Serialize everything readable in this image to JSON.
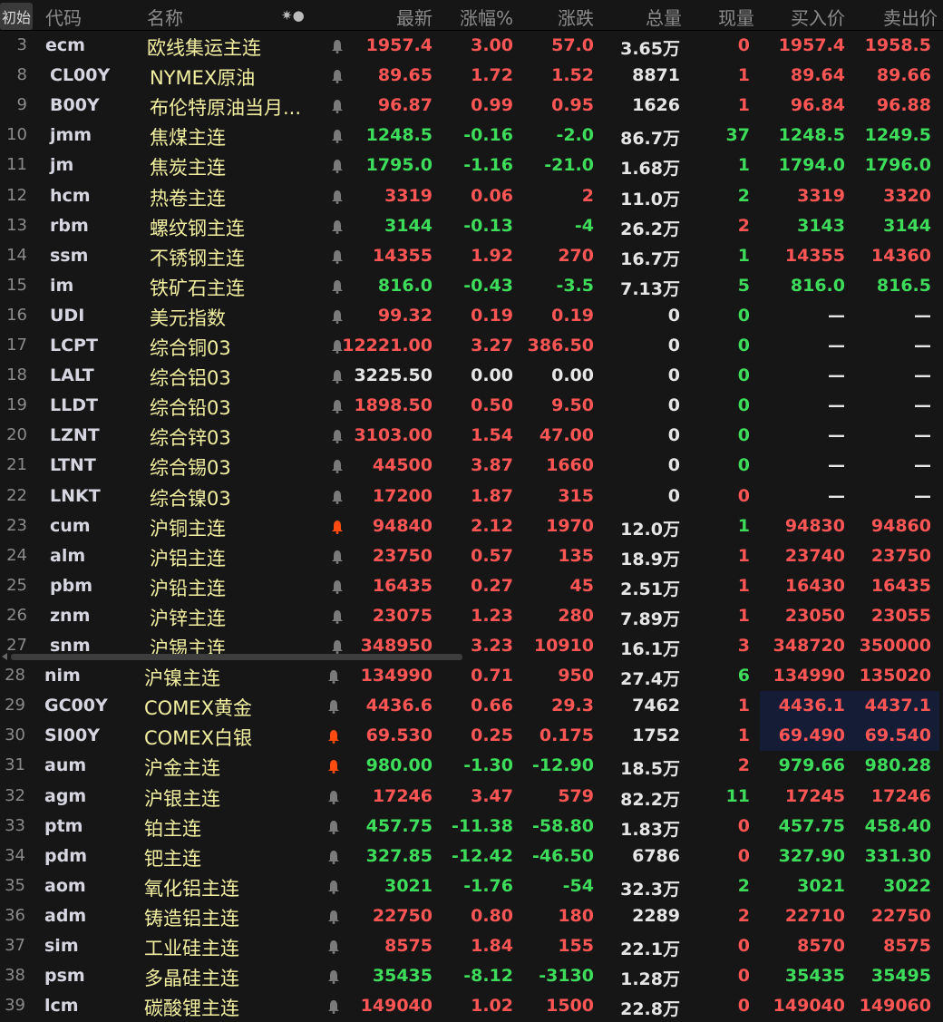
{
  "header": {
    "init": "初始",
    "code": "代码",
    "name": "名称",
    "icons": "✷●",
    "last": "最新",
    "pct": "涨幅%",
    "chg": "涨跌",
    "vol": "总量",
    "cur": "现量",
    "bid": "买入价",
    "ask": "卖出价"
  },
  "colors": {
    "up": "#ff5555",
    "down": "#3ddc5a",
    "flat": "#e6e6e6",
    "name": "#f2f0a0",
    "bell_gray": "#7a7a7a",
    "bell_orange": "#ff4a10",
    "highlight": "#141c36"
  },
  "rows": [
    {
      "n": "3",
      "code": "ecm",
      "name": "欧线集运主连",
      "bell": "gray",
      "last": "1957.4",
      "pct": "3.00",
      "chg": "57.0",
      "vol": "3.65万",
      "cur": "0",
      "bid": "1957.4",
      "ask": "1958.5",
      "c": "r",
      "cc": "r"
    },
    {
      "n": "8",
      "code": "CL00Y",
      "name": "NYMEX原油",
      "bell": "gray",
      "last": "89.65",
      "pct": "1.72",
      "chg": "1.52",
      "vol": "8871",
      "cur": "1",
      "bid": "89.64",
      "ask": "89.66",
      "c": "r",
      "cc": "r"
    },
    {
      "n": "9",
      "code": "B00Y",
      "name": "布伦特原油当月...",
      "bell": "gray",
      "last": "96.87",
      "pct": "0.99",
      "chg": "0.95",
      "vol": "1626",
      "cur": "1",
      "bid": "96.84",
      "ask": "96.88",
      "c": "r",
      "cc": "r"
    },
    {
      "n": "10",
      "code": "jmm",
      "name": "焦煤主连",
      "bell": "gray",
      "last": "1248.5",
      "pct": "-0.16",
      "chg": "-2.0",
      "vol": "86.7万",
      "cur": "37",
      "bid": "1248.5",
      "ask": "1249.5",
      "c": "g",
      "cc": "g"
    },
    {
      "n": "11",
      "code": "jm",
      "name": "焦炭主连",
      "bell": "gray",
      "last": "1795.0",
      "pct": "-1.16",
      "chg": "-21.0",
      "vol": "1.68万",
      "cur": "1",
      "bid": "1794.0",
      "ask": "1796.0",
      "c": "g",
      "cc": "g"
    },
    {
      "n": "12",
      "code": "hcm",
      "name": "热卷主连",
      "bell": "gray",
      "last": "3319",
      "pct": "0.06",
      "chg": "2",
      "vol": "11.0万",
      "cur": "2",
      "bid": "3319",
      "ask": "3320",
      "c": "r",
      "cc": "g"
    },
    {
      "n": "13",
      "code": "rbm",
      "name": "螺纹钢主连",
      "bell": "gray",
      "last": "3144",
      "pct": "-0.13",
      "chg": "-4",
      "vol": "26.2万",
      "cur": "2",
      "bid": "3143",
      "ask": "3144",
      "c": "g",
      "cc": "r"
    },
    {
      "n": "14",
      "code": "ssm",
      "name": "不锈钢主连",
      "bell": "gray",
      "last": "14355",
      "pct": "1.92",
      "chg": "270",
      "vol": "16.7万",
      "cur": "1",
      "bid": "14355",
      "ask": "14360",
      "c": "r",
      "cc": "g"
    },
    {
      "n": "15",
      "code": "im",
      "name": "铁矿石主连",
      "bell": "gray",
      "last": "816.0",
      "pct": "-0.43",
      "chg": "-3.5",
      "vol": "7.13万",
      "cur": "5",
      "bid": "816.0",
      "ask": "816.5",
      "c": "g",
      "cc": "g"
    },
    {
      "n": "16",
      "code": "UDI",
      "name": "美元指数",
      "bell": "gray",
      "last": "99.32",
      "pct": "0.19",
      "chg": "0.19",
      "vol": "0",
      "cur": "0",
      "bid": "—",
      "ask": "—",
      "c": "r",
      "cc": "g"
    },
    {
      "n": "17",
      "code": "LCPT",
      "name": "综合铜03",
      "bell": "gray",
      "last": "12221.00",
      "pct": "3.27",
      "chg": "386.50",
      "vol": "0",
      "cur": "0",
      "bid": "—",
      "ask": "—",
      "c": "r",
      "cc": "g"
    },
    {
      "n": "18",
      "code": "LALT",
      "name": "综合铝03",
      "bell": "gray",
      "last": "3225.50",
      "pct": "0.00",
      "chg": "0.00",
      "vol": "0",
      "cur": "0",
      "bid": "—",
      "ask": "—",
      "c": "w",
      "cc": "g"
    },
    {
      "n": "19",
      "code": "LLDT",
      "name": "综合铅03",
      "bell": "gray",
      "last": "1898.50",
      "pct": "0.50",
      "chg": "9.50",
      "vol": "0",
      "cur": "0",
      "bid": "—",
      "ask": "—",
      "c": "r",
      "cc": "g"
    },
    {
      "n": "20",
      "code": "LZNT",
      "name": "综合锌03",
      "bell": "gray",
      "last": "3103.00",
      "pct": "1.54",
      "chg": "47.00",
      "vol": "0",
      "cur": "0",
      "bid": "—",
      "ask": "—",
      "c": "r",
      "cc": "g"
    },
    {
      "n": "21",
      "code": "LTNT",
      "name": "综合锡03",
      "bell": "gray",
      "last": "44500",
      "pct": "3.87",
      "chg": "1660",
      "vol": "0",
      "cur": "0",
      "bid": "—",
      "ask": "—",
      "c": "r",
      "cc": "g"
    },
    {
      "n": "22",
      "code": "LNKT",
      "name": "综合镍03",
      "bell": "gray",
      "last": "17200",
      "pct": "1.87",
      "chg": "315",
      "vol": "0",
      "cur": "0",
      "bid": "—",
      "ask": "—",
      "c": "r",
      "cc": "r"
    },
    {
      "n": "23",
      "code": "cum",
      "name": "沪铜主连",
      "bell": "orange",
      "last": "94840",
      "pct": "2.12",
      "chg": "1970",
      "vol": "12.0万",
      "cur": "1",
      "bid": "94830",
      "ask": "94860",
      "c": "r",
      "cc": "g"
    },
    {
      "n": "24",
      "code": "alm",
      "name": "沪铝主连",
      "bell": "gray",
      "last": "23750",
      "pct": "0.57",
      "chg": "135",
      "vol": "18.9万",
      "cur": "1",
      "bid": "23740",
      "ask": "23750",
      "c": "r",
      "cc": "r"
    },
    {
      "n": "25",
      "code": "pbm",
      "name": "沪铅主连",
      "bell": "gray",
      "last": "16435",
      "pct": "0.27",
      "chg": "45",
      "vol": "2.51万",
      "cur": "1",
      "bid": "16430",
      "ask": "16435",
      "c": "r",
      "cc": "r"
    },
    {
      "n": "26",
      "code": "znm",
      "name": "沪锌主连",
      "bell": "gray",
      "last": "23075",
      "pct": "1.23",
      "chg": "280",
      "vol": "7.89万",
      "cur": "1",
      "bid": "23050",
      "ask": "23055",
      "c": "r",
      "cc": "r"
    },
    {
      "n": "27",
      "code": "snm",
      "name": "沪锡主连",
      "bell": "gray",
      "last": "348950",
      "pct": "3.23",
      "chg": "10910",
      "vol": "16.1万",
      "cur": "3",
      "bid": "348720",
      "ask": "350000",
      "c": "r",
      "cc": "r"
    },
    {
      "n": "28",
      "code": "nim",
      "name": "沪镍主连",
      "bell": "gray",
      "last": "134990",
      "pct": "0.71",
      "chg": "950",
      "vol": "27.4万",
      "cur": "6",
      "bid": "134990",
      "ask": "135020",
      "c": "r",
      "cc": "g"
    },
    {
      "n": "29",
      "code": "GC00Y",
      "name": "COMEX黄金",
      "bell": "gray",
      "last": "4436.6",
      "pct": "0.66",
      "chg": "29.3",
      "vol": "7462",
      "cur": "1",
      "bid": "4436.1",
      "ask": "4437.1",
      "c": "r",
      "cc": "r"
    },
    {
      "n": "30",
      "code": "SI00Y",
      "name": "COMEX白银",
      "bell": "orange",
      "last": "69.530",
      "pct": "0.25",
      "chg": "0.175",
      "vol": "1752",
      "cur": "1",
      "bid": "69.490",
      "ask": "69.540",
      "c": "r",
      "cc": "r"
    },
    {
      "n": "31",
      "code": "aum",
      "name": "沪金主连",
      "bell": "orange",
      "last": "980.00",
      "pct": "-1.30",
      "chg": "-12.90",
      "vol": "18.5万",
      "cur": "2",
      "bid": "979.66",
      "ask": "980.28",
      "c": "g",
      "cc": "r"
    },
    {
      "n": "32",
      "code": "agm",
      "name": "沪银主连",
      "bell": "gray",
      "last": "17246",
      "pct": "3.47",
      "chg": "579",
      "vol": "82.2万",
      "cur": "11",
      "bid": "17245",
      "ask": "17246",
      "c": "r",
      "cc": "g"
    },
    {
      "n": "33",
      "code": "ptm",
      "name": "铂主连",
      "bell": "gray",
      "last": "457.75",
      "pct": "-11.38",
      "chg": "-58.80",
      "vol": "1.83万",
      "cur": "0",
      "bid": "457.75",
      "ask": "458.40",
      "c": "g",
      "cc": "r"
    },
    {
      "n": "34",
      "code": "pdm",
      "name": "钯主连",
      "bell": "gray",
      "last": "327.85",
      "pct": "-12.42",
      "chg": "-46.50",
      "vol": "6786",
      "cur": "0",
      "bid": "327.90",
      "ask": "331.30",
      "c": "g",
      "cc": "r"
    },
    {
      "n": "35",
      "code": "aom",
      "name": "氧化铝主连",
      "bell": "gray",
      "last": "3021",
      "pct": "-1.76",
      "chg": "-54",
      "vol": "32.3万",
      "cur": "2",
      "bid": "3021",
      "ask": "3022",
      "c": "g",
      "cc": "g"
    },
    {
      "n": "36",
      "code": "adm",
      "name": "铸造铝主连",
      "bell": "gray",
      "last": "22750",
      "pct": "0.80",
      "chg": "180",
      "vol": "2289",
      "cur": "2",
      "bid": "22710",
      "ask": "22750",
      "c": "r",
      "cc": "r"
    },
    {
      "n": "37",
      "code": "sim",
      "name": "工业硅主连",
      "bell": "gray",
      "last": "8575",
      "pct": "1.84",
      "chg": "155",
      "vol": "22.1万",
      "cur": "0",
      "bid": "8570",
      "ask": "8575",
      "c": "r",
      "cc": "r"
    },
    {
      "n": "38",
      "code": "psm",
      "name": "多晶硅主连",
      "bell": "gray",
      "last": "35435",
      "pct": "-8.12",
      "chg": "-3130",
      "vol": "1.28万",
      "cur": "0",
      "bid": "35435",
      "ask": "35495",
      "c": "g",
      "cc": "r"
    },
    {
      "n": "39",
      "code": "lcm",
      "name": "碳酸锂主连",
      "bell": "gray",
      "last": "149040",
      "pct": "1.02",
      "chg": "1500",
      "vol": "22.8万",
      "cur": "0",
      "bid": "149040",
      "ask": "149060",
      "c": "r",
      "cc": "r"
    }
  ]
}
